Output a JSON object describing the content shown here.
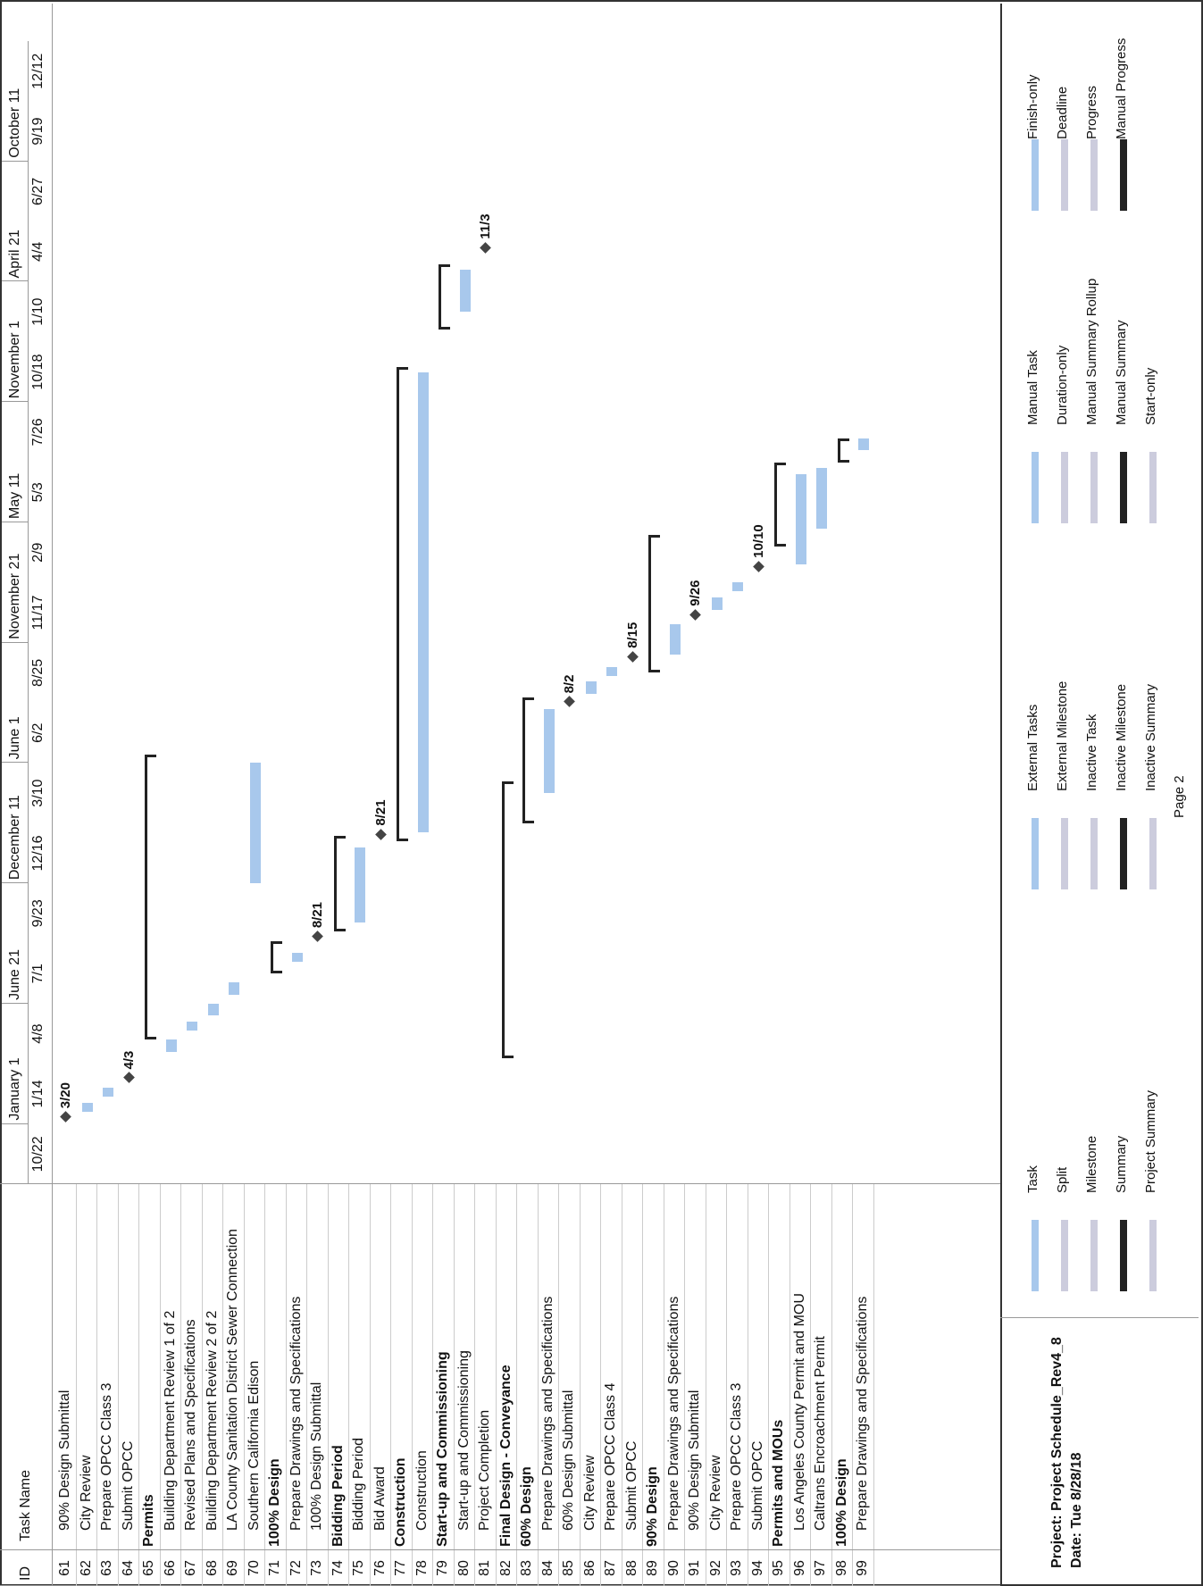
{
  "header": {
    "id_label": "ID",
    "name_label": "Task Name",
    "timescale_top": [
      "January 1",
      "June 21",
      "December 11",
      "June 1",
      "November 21",
      "May 11",
      "November 1",
      "April 21",
      "October 11"
    ],
    "timescale_bottom": [
      "10/22",
      "1/14",
      "4/8",
      "7/1",
      "9/23",
      "12/16",
      "3/10",
      "6/2",
      "8/25",
      "11/17",
      "2/9",
      "5/3",
      "7/26",
      "10/18",
      "1/10",
      "4/4",
      "6/27",
      "9/19",
      "12/12"
    ]
  },
  "tasks": [
    {
      "id": "61",
      "name": "90% Design Submittal",
      "level": 1,
      "bold": false,
      "type": "milestone",
      "date": "3/20"
    },
    {
      "id": "62",
      "name": "City Review",
      "level": 1,
      "bold": false,
      "type": "task"
    },
    {
      "id": "63",
      "name": "Prepare OPCC Class 3",
      "level": 1,
      "bold": false,
      "type": "task"
    },
    {
      "id": "64",
      "name": "Submit OPCC",
      "level": 1,
      "bold": false,
      "type": "milestone",
      "date": "4/3"
    },
    {
      "id": "65",
      "name": "Permits",
      "level": 0,
      "bold": true,
      "type": "summary"
    },
    {
      "id": "66",
      "name": "Building Department Review 1 of 2",
      "level": 1,
      "bold": false,
      "type": "task"
    },
    {
      "id": "67",
      "name": "Revised Plans and Specifications",
      "level": 1,
      "bold": false,
      "type": "task"
    },
    {
      "id": "68",
      "name": "Building Department Review 2 of 2",
      "level": 1,
      "bold": false,
      "type": "task"
    },
    {
      "id": "69",
      "name": "LA County Sanitation District Sewer Connection",
      "level": 1,
      "bold": false,
      "type": "task"
    },
    {
      "id": "70",
      "name": "Southern California Edison",
      "level": 1,
      "bold": false,
      "type": "task"
    },
    {
      "id": "71",
      "name": "100% Design",
      "level": 0,
      "bold": true,
      "type": "summary"
    },
    {
      "id": "72",
      "name": "Prepare Drawings and Specifications",
      "level": 1,
      "bold": false,
      "type": "task"
    },
    {
      "id": "73",
      "name": "100% Design Submittal",
      "level": 1,
      "bold": false,
      "type": "milestone",
      "date": "8/21"
    },
    {
      "id": "74",
      "name": "Bidding Period",
      "level": 0,
      "bold": true,
      "type": "summary"
    },
    {
      "id": "75",
      "name": "Bidding Period",
      "level": 1,
      "bold": false,
      "type": "task"
    },
    {
      "id": "76",
      "name": "Bid Award",
      "level": 1,
      "bold": false,
      "type": "milestone",
      "date": "8/21"
    },
    {
      "id": "77",
      "name": "Construction",
      "level": 0,
      "bold": true,
      "type": "summary"
    },
    {
      "id": "78",
      "name": "Construction",
      "level": 1,
      "bold": false,
      "type": "task"
    },
    {
      "id": "79",
      "name": "Start-up and Commissioning",
      "level": 0,
      "bold": true,
      "type": "summary"
    },
    {
      "id": "80",
      "name": "Start-up and Commissioning",
      "level": 1,
      "bold": false,
      "type": "task"
    },
    {
      "id": "81",
      "name": "Project Completion",
      "level": 1,
      "bold": false,
      "type": "milestone",
      "date": "11/3"
    },
    {
      "id": "82",
      "name": "Final Design - Conveyance",
      "level": 0,
      "bold": true,
      "type": "summary"
    },
    {
      "id": "83",
      "name": "60% Design",
      "level": 0,
      "bold": true,
      "type": "summary"
    },
    {
      "id": "84",
      "name": "Prepare Drawings and Specifications",
      "level": 1,
      "bold": false,
      "type": "task"
    },
    {
      "id": "85",
      "name": "60% Design Submittal",
      "level": 1,
      "bold": false,
      "type": "milestone",
      "date": "8/2"
    },
    {
      "id": "86",
      "name": "City Review",
      "level": 1,
      "bold": false,
      "type": "task"
    },
    {
      "id": "87",
      "name": "Prepare OPCC Class 4",
      "level": 1,
      "bold": false,
      "type": "task"
    },
    {
      "id": "88",
      "name": "Submit OPCC",
      "level": 1,
      "bold": false,
      "type": "milestone",
      "date": "8/15"
    },
    {
      "id": "89",
      "name": "90% Design",
      "level": 0,
      "bold": true,
      "type": "summary"
    },
    {
      "id": "90",
      "name": "Prepare Drawings and Specifications",
      "level": 1,
      "bold": false,
      "type": "task"
    },
    {
      "id": "91",
      "name": "90% Design Submittal",
      "level": 1,
      "bold": false,
      "type": "milestone",
      "date": "9/26"
    },
    {
      "id": "92",
      "name": "City Review",
      "level": 1,
      "bold": false,
      "type": "task"
    },
    {
      "id": "93",
      "name": "Prepare OPCC Class 3",
      "level": 1,
      "bold": false,
      "type": "task"
    },
    {
      "id": "94",
      "name": "Submit OPCC",
      "level": 1,
      "bold": false,
      "type": "milestone",
      "date": "10/10"
    },
    {
      "id": "95",
      "name": "Permits and MOUs",
      "level": 0,
      "bold": true,
      "type": "summary"
    },
    {
      "id": "96",
      "name": "Los Angeles County Permit and MOU",
      "level": 1,
      "bold": false,
      "type": "task"
    },
    {
      "id": "97",
      "name": "Caltrans Encroachment Permit",
      "level": 1,
      "bold": false,
      "type": "task"
    },
    {
      "id": "98",
      "name": "100% Design",
      "level": 0,
      "bold": true,
      "type": "summary"
    },
    {
      "id": "99",
      "name": "Prepare Drawings and Specifications",
      "level": 1,
      "bold": false,
      "type": "task"
    }
  ],
  "footer": {
    "project_line": "Project: Project Schedule_Rev4_8",
    "date_line": "Date: Tue 8/28/18",
    "page_label": "Page 2"
  },
  "legend": {
    "col1": [
      "Task",
      "Split",
      "Milestone",
      "Summary",
      "Project Summary"
    ],
    "col2": [
      "External Tasks",
      "External Milestone",
      "Inactive Task",
      "Inactive Milestone",
      "Inactive Summary"
    ],
    "col3": [
      "Manual Task",
      "Duration-only",
      "Manual Summary Rollup",
      "Manual Summary",
      "Start-only"
    ],
    "col4": [
      "Finish-only",
      "Deadline",
      "Progress",
      "Manual Progress"
    ]
  },
  "colors": {
    "task_bar": "#a8c8ec",
    "summary": "#222222",
    "progress": "#3a9ad9"
  }
}
